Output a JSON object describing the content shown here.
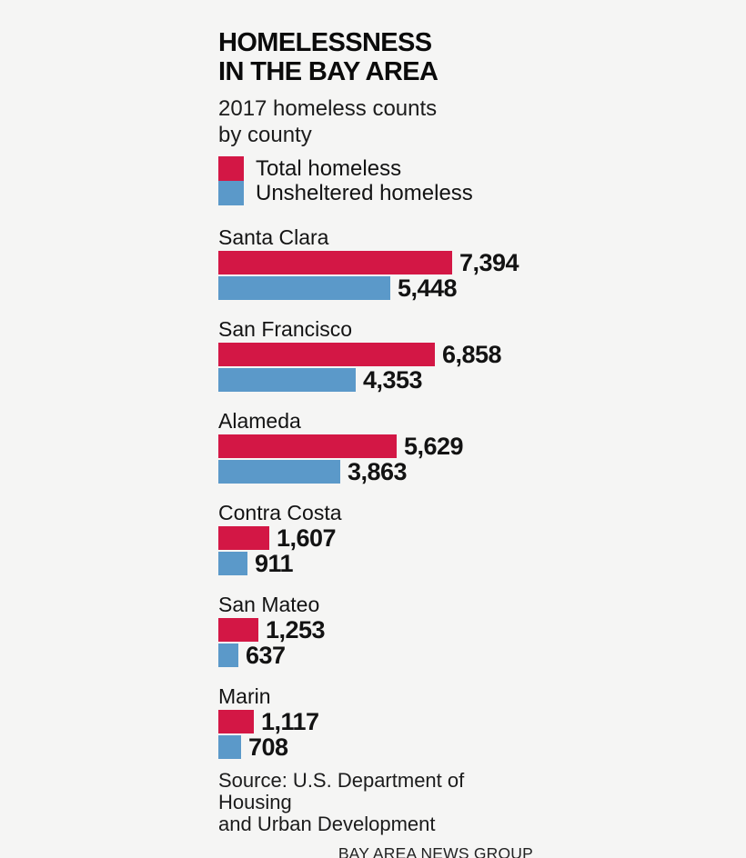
{
  "header": {
    "title_line1": "HOMELESSNESS",
    "title_line2": "IN THE BAY AREA",
    "subtitle_line1": "2017 homeless counts",
    "subtitle_line2": "by county"
  },
  "legend": {
    "total_label": "Total homeless",
    "unsheltered_label": "Unsheltered homeless"
  },
  "colors": {
    "total_bar": "#d31745",
    "unsheltered_bar": "#5b99c9",
    "background": "#f5f5f4",
    "text": "#131313"
  },
  "chart_data": {
    "type": "bar",
    "orientation": "horizontal",
    "title": "HOMELESSNESS IN THE BAY AREA",
    "subtitle": "2017 homeless counts by county",
    "categories": [
      "Santa Clara",
      "San Francisco",
      "Alameda",
      "Contra Costa",
      "San Mateo",
      "Marin"
    ],
    "series": [
      {
        "name": "Total homeless",
        "color": "#d31745",
        "values": [
          7394,
          6858,
          5629,
          1607,
          1253,
          1117
        ],
        "value_labels": [
          "7,394",
          "6,858",
          "5,629",
          "1,607",
          "1,253",
          "1,117"
        ]
      },
      {
        "name": "Unsheltered homeless",
        "color": "#5b99c9",
        "values": [
          5448,
          4353,
          3863,
          911,
          637,
          708
        ],
        "value_labels": [
          "5,448",
          "4,353",
          "3,863",
          "911",
          "637",
          "708"
        ]
      }
    ],
    "xmax": 7394,
    "grid": false,
    "legend_position": "top-left"
  },
  "footer": {
    "source_line1": "Source: U.S. Department of Housing",
    "source_line2": "and Urban Development",
    "credit": "BAY AREA NEWS GROUP"
  }
}
